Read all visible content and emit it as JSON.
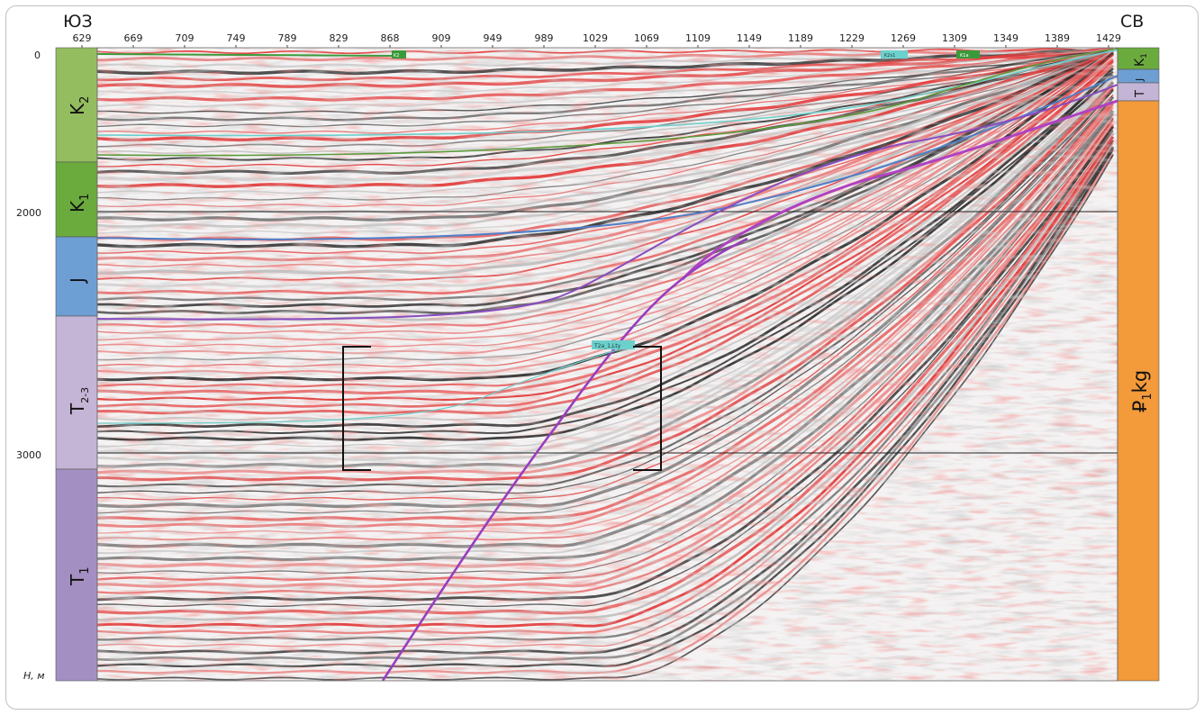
{
  "header": {
    "left_direction": "ЮЗ",
    "right_direction": "СВ"
  },
  "trace_axis": {
    "labels": [
      "629",
      "669",
      "709",
      "749",
      "789",
      "829",
      "868",
      "909",
      "949",
      "989",
      "1029",
      "1069",
      "1109",
      "1149",
      "1189",
      "1229",
      "1269",
      "1309",
      "1349",
      "1389",
      "1429"
    ]
  },
  "depth_axis": {
    "labels": [
      "0",
      "2000",
      "3000"
    ],
    "unit_label": "Н, м"
  },
  "strat_left": [
    {
      "name": "K2",
      "sub": "2",
      "base": "K",
      "color": "#93bd5f"
    },
    {
      "name": "K1",
      "sub": "1",
      "base": "K",
      "color": "#6bab3e"
    },
    {
      "name": "J",
      "sub": "",
      "base": "J",
      "color": "#6d9fd4"
    },
    {
      "name": "T2-3",
      "sub": "2-3",
      "base": "T",
      "color": "#c4b4d6"
    },
    {
      "name": "T1",
      "sub": "1",
      "base": "T",
      "color": "#a48fc2"
    }
  ],
  "strat_right": [
    {
      "name": "K1",
      "sub": "1",
      "base": "K",
      "color": "#6bab3e"
    },
    {
      "name": "J",
      "sub": "",
      "base": "J",
      "color": "#6d9fd4"
    },
    {
      "name": "T",
      "sub": "",
      "base": "T",
      "color": "#c4b4d6"
    },
    {
      "name": "P1kg",
      "sub": "1",
      "base": "₽",
      "suffix": "kg",
      "color": "#f39a3a"
    }
  ],
  "horizon_tags": [
    {
      "text": "K2",
      "color": "#3a9a3a"
    },
    {
      "text": "K2s1",
      "color": "#6cd0cc"
    },
    {
      "text": "K1a",
      "color": "#3a9a3a"
    },
    {
      "text": "T2a_1,Lty",
      "color": "#6cd0cc"
    }
  ]
}
